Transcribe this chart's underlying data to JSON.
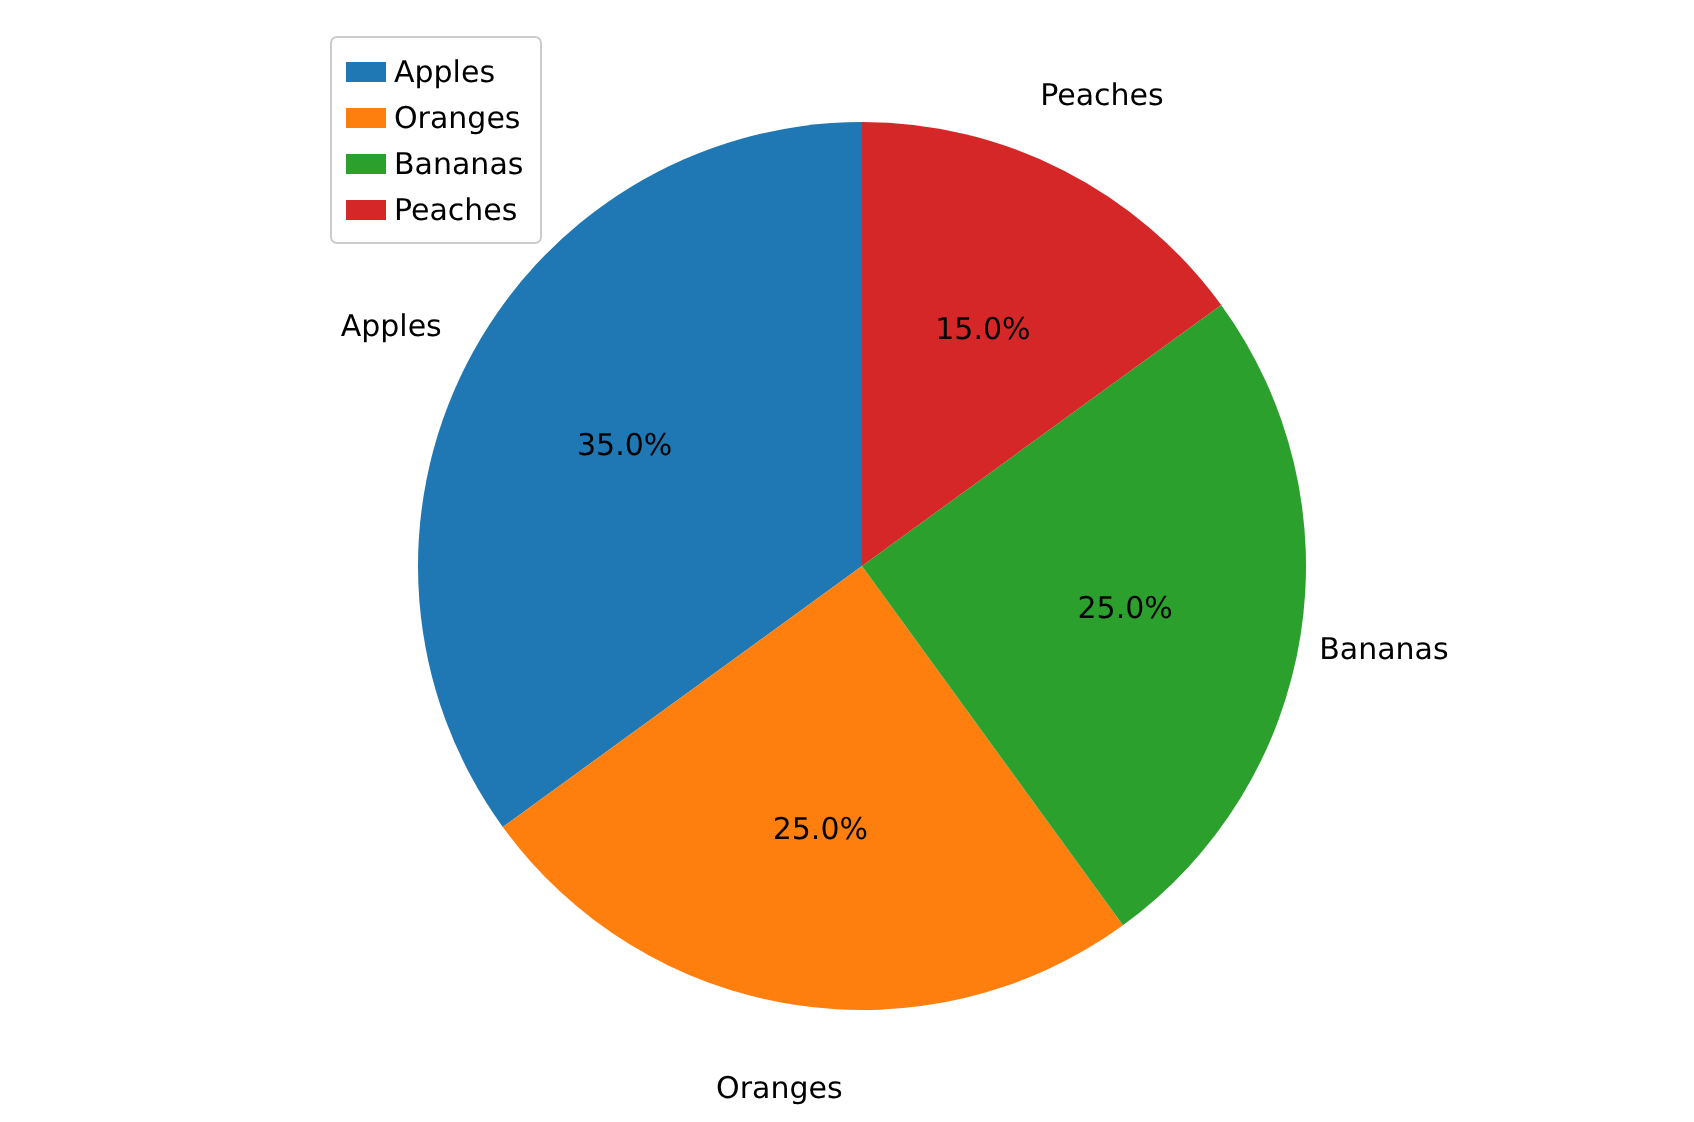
{
  "chart_data": {
    "type": "pie",
    "categories": [
      "Apples",
      "Oranges",
      "Bananas",
      "Peaches"
    ],
    "values": [
      35,
      25,
      25,
      15
    ],
    "colors": [
      "#1f77b4",
      "#ff7f0e",
      "#2ca02c",
      "#d62728"
    ],
    "value_labels": [
      "35.0%",
      "25.0%",
      "25.0%",
      "15.0%"
    ],
    "legend": "top left"
  }
}
